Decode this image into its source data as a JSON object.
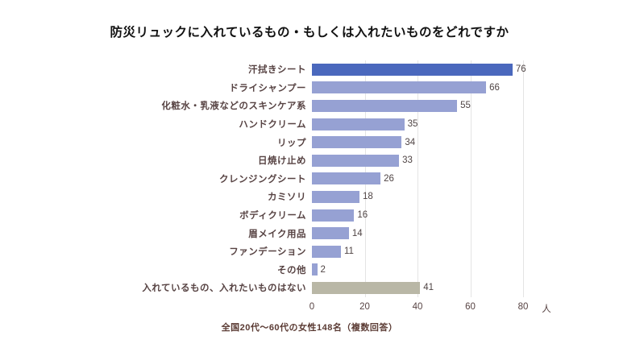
{
  "title": "防災リュックに入れているもの・もしくは入れたいものをどれですか",
  "footer": "全国20代〜60代の女性148名（複数回答）",
  "chart_data": {
    "type": "bar",
    "orientation": "horizontal",
    "title": "防災リュックに入れているもの・もしくは入れたいものをどれですか",
    "categories": [
      "汗拭きシート",
      "ドライシャンプー",
      "化粧水・乳液などのスキンケア系",
      "ハンドクリーム",
      "リップ",
      "日焼け止め",
      "クレンジングシート",
      "カミソリ",
      "ボディクリーム",
      "眉メイク用品",
      "ファンデーション",
      "その他",
      "入れているもの、入れたいものはない"
    ],
    "values": [
      76,
      66,
      55,
      35,
      34,
      33,
      26,
      18,
      16,
      14,
      11,
      2,
      41
    ],
    "highlight_index": 0,
    "muted_index": 12,
    "xlim": [
      0,
      80
    ],
    "x_ticks": [
      0,
      20,
      40,
      60,
      80
    ],
    "x_unit": "人",
    "grid": true,
    "legend": "none",
    "note": "全国20代〜60代の女性148名（複数回答）",
    "colors": {
      "highlight": "#4a68bd",
      "default": "#96a1d3",
      "muted": "#b9b7a6",
      "label_text": "#574343",
      "value_text": "#4f4444",
      "axis_text": "#574343",
      "gridline": "#e4e4e4",
      "title": "#111111",
      "footer": "#5a3a33"
    }
  }
}
